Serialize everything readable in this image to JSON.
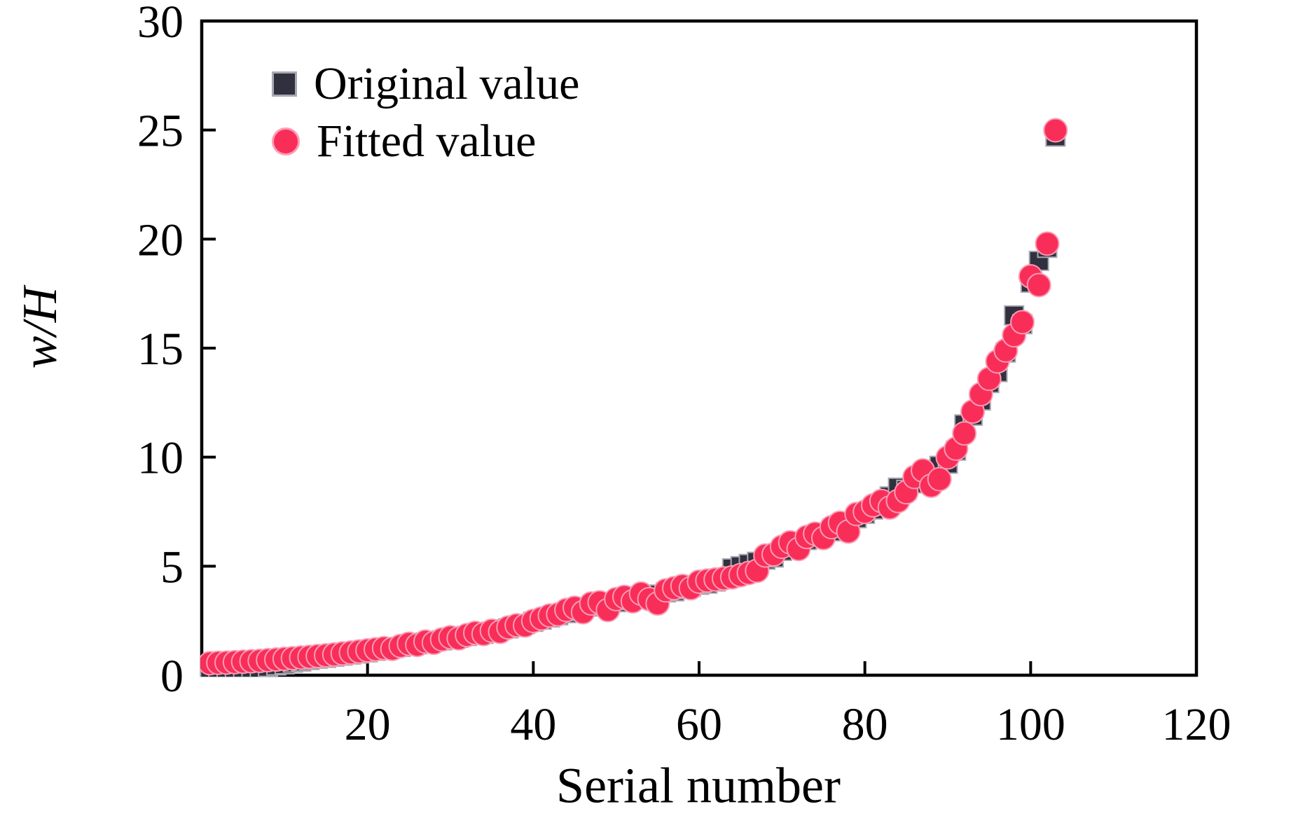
{
  "figure": {
    "background": "#ffffff"
  },
  "legend": {
    "items": [
      {
        "label": "Original value",
        "marker": "square",
        "color": "#31303e"
      },
      {
        "label": "Fitted value",
        "marker": "circle",
        "color": "#f82e59"
      }
    ]
  },
  "chart_data": {
    "type": "scatter",
    "title": "",
    "xlabel": "Serial number",
    "ylabel": "w/H",
    "xlim": [
      0,
      120
    ],
    "ylim": [
      0,
      30
    ],
    "xticks": [
      20,
      40,
      60,
      80,
      100,
      120
    ],
    "yticks": [
      0,
      5,
      10,
      15,
      20,
      25,
      30
    ],
    "grid": false,
    "legend_position": "top-left-inside",
    "frame_color": "#000000",
    "x_start_serial": 1,
    "series": [
      {
        "name": "Original value",
        "marker": "square",
        "color": "#31303e",
        "values": [
          0.1,
          0.12,
          0.15,
          0.18,
          0.22,
          0.28,
          0.33,
          0.38,
          0.45,
          0.5,
          0.58,
          0.63,
          0.7,
          0.76,
          0.8,
          0.85,
          0.9,
          0.95,
          1.0,
          1.05,
          1.12,
          1.2,
          1.25,
          1.3,
          1.35,
          1.42,
          1.5,
          1.55,
          1.6,
          1.65,
          1.72,
          1.8,
          1.85,
          1.9,
          2.0,
          2.1,
          2.15,
          2.25,
          2.35,
          2.45,
          2.55,
          2.65,
          2.75,
          2.85,
          2.95,
          3.05,
          3.15,
          3.2,
          3.3,
          3.35,
          3.45,
          3.5,
          3.6,
          3.65,
          3.7,
          3.8,
          3.85,
          3.95,
          4.05,
          4.15,
          4.2,
          4.3,
          4.4,
          4.9,
          5.0,
          5.1,
          5.2,
          5.3,
          5.4,
          5.7,
          5.9,
          6.1,
          6.2,
          6.4,
          6.5,
          6.6,
          6.9,
          7.0,
          7.2,
          7.4,
          7.6,
          7.8,
          8.2,
          8.6,
          8.5,
          8.8,
          9.1,
          9.4,
          9.6,
          9.7,
          10.3,
          11.5,
          11.9,
          12.6,
          13.4,
          13.9,
          14.8,
          16.5,
          16.1,
          18.0,
          19.0,
          19.6,
          24.7
        ]
      },
      {
        "name": "Fitted value",
        "marker": "circle",
        "color": "#f82e59",
        "values": [
          0.55,
          0.57,
          0.58,
          0.6,
          0.62,
          0.64,
          0.66,
          0.69,
          0.72,
          0.75,
          0.78,
          0.81,
          0.84,
          0.88,
          0.91,
          0.95,
          1.0,
          1.04,
          1.09,
          1.14,
          1.19,
          1.24,
          1.21,
          1.34,
          1.44,
          1.39,
          1.54,
          1.49,
          1.64,
          1.74,
          1.69,
          1.84,
          1.94,
          1.89,
          2.04,
          1.99,
          2.19,
          2.29,
          2.28,
          2.49,
          2.6,
          2.74,
          2.79,
          2.99,
          3.09,
          2.89,
          3.29,
          3.34,
          2.99,
          3.49,
          3.59,
          3.39,
          3.74,
          3.49,
          3.29,
          3.89,
          3.99,
          4.09,
          3.99,
          4.29,
          4.34,
          4.39,
          4.44,
          4.49,
          4.59,
          4.69,
          4.79,
          5.49,
          5.54,
          5.89,
          6.09,
          5.79,
          6.34,
          6.49,
          6.29,
          6.79,
          6.99,
          6.59,
          7.39,
          7.49,
          7.79,
          7.99,
          7.69,
          7.99,
          8.39,
          9.09,
          9.39,
          8.69,
          8.99,
          9.99,
          10.39,
          11.09,
          12.09,
          12.89,
          13.59,
          14.39,
          14.89,
          15.59,
          16.19,
          18.29,
          17.89,
          19.79,
          24.99
        ]
      }
    ]
  }
}
